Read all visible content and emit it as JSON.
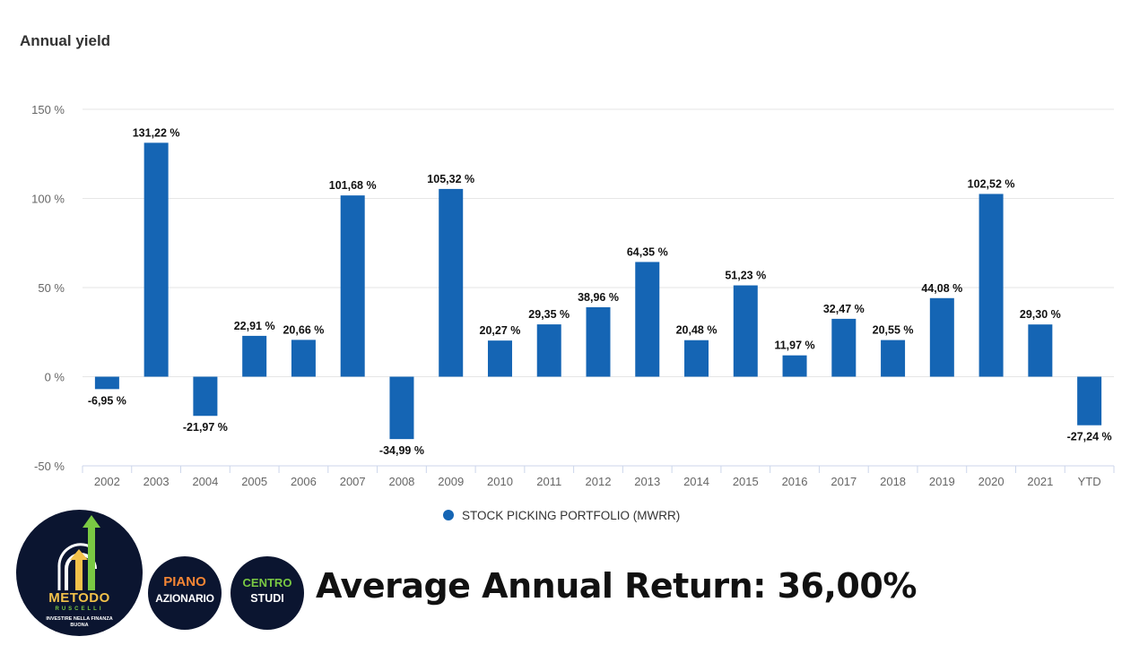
{
  "chart_data": {
    "type": "bar",
    "title": "Annual yield",
    "categories": [
      "2002",
      "2003",
      "2004",
      "2005",
      "2006",
      "2007",
      "2008",
      "2009",
      "2010",
      "2011",
      "2012",
      "2013",
      "2014",
      "2015",
      "2016",
      "2017",
      "2018",
      "2019",
      "2020",
      "2021",
      "YTD"
    ],
    "series": [
      {
        "name": "STOCK PICKING PORTFOLIO (MWRR)",
        "values": [
          -6.95,
          131.22,
          -21.97,
          22.91,
          20.66,
          101.68,
          -34.99,
          105.32,
          20.27,
          29.35,
          38.96,
          64.35,
          20.48,
          51.23,
          11.97,
          32.47,
          20.55,
          44.08,
          102.52,
          29.3,
          -27.24
        ],
        "labels": [
          "-6,95 %",
          "131,22 %",
          "-21,97 %",
          "22,91 %",
          "20,66 %",
          "101,68 %",
          "-34,99 %",
          "105,32 %",
          "20,27 %",
          "29,35 %",
          "38,96 %",
          "64,35 %",
          "20,48 %",
          "51,23 %",
          "11,97 %",
          "32,47 %",
          "20,55 %",
          "44,08 %",
          "102,52 %",
          "29,30 %",
          "-27,24 %"
        ],
        "color": "#1565b4"
      }
    ],
    "ylim": [
      -50,
      150
    ],
    "yticks": [
      150,
      100,
      50,
      0,
      -50
    ],
    "ytick_labels": [
      "150 %",
      "100 %",
      "50 %",
      "0 %",
      "-50 %"
    ],
    "grid": true,
    "legend": "bottom-center",
    "xlabel": "",
    "ylabel": ""
  },
  "branding": {
    "logo_main": "METODO",
    "logo_sub": "RUSCELLI",
    "logo_tag": "INVESTIRE NELLA FINANZA BUONA",
    "badge1_top": "PIANO",
    "badge1_bottom": "AZIONARIO",
    "badge2_top": "CENTRO",
    "badge2_bottom": "STUDI"
  },
  "summary": {
    "average_text": "Average Annual Return: 36,00%"
  },
  "colors": {
    "bar": "#1565b4",
    "grid": "#e6e6e6",
    "logo_bg": "#0b1530",
    "accent_gold": "#f2c14a",
    "accent_green": "#7ac943",
    "accent_orange": "#f58634"
  }
}
